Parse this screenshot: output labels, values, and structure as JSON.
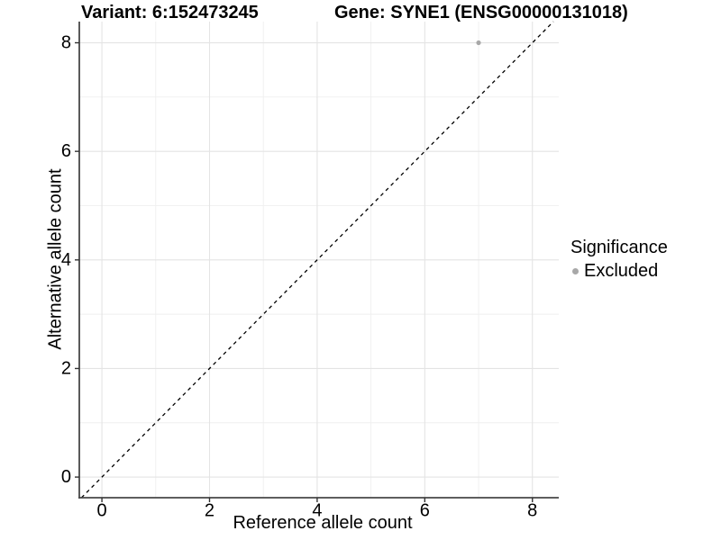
{
  "titles": {
    "variant": "Variant: 6:152473245",
    "gene": "Gene: SYNE1 (ENSG00000131018)"
  },
  "chart_data": {
    "type": "scatter",
    "title_left": "Variant: 6:152473245",
    "title_right": "Gene: SYNE1 (ENSG00000131018)",
    "xlabel": "Reference allele count",
    "ylabel": "Alternative allele count",
    "xlim": [
      -0.42,
      8.49
    ],
    "ylim": [
      -0.38,
      8.39
    ],
    "x_ticks": [
      0,
      2,
      4,
      6,
      8
    ],
    "y_ticks": [
      0,
      2,
      4,
      6,
      8
    ],
    "x_minor_breaks": [
      1,
      3,
      5,
      7
    ],
    "y_minor_breaks": [
      1,
      3,
      5,
      7
    ],
    "grid": "major+minor",
    "points": [
      {
        "x": 7,
        "y": 8,
        "significance": "Excluded"
      }
    ],
    "identity_line": {
      "equation": "y = x",
      "style": "dashed",
      "color": "#000000"
    },
    "legend": {
      "title": "Significance",
      "position": "right",
      "items": [
        {
          "label": "Excluded",
          "color": "#a8a8a8"
        }
      ]
    },
    "style": {
      "point_color": "#a8a8a8",
      "grid_major_color": "#e4e4e4",
      "grid_minor_color": "#efefef",
      "axis_color": "#474747",
      "tick_color": "#333333",
      "text_color": "#000000"
    }
  }
}
